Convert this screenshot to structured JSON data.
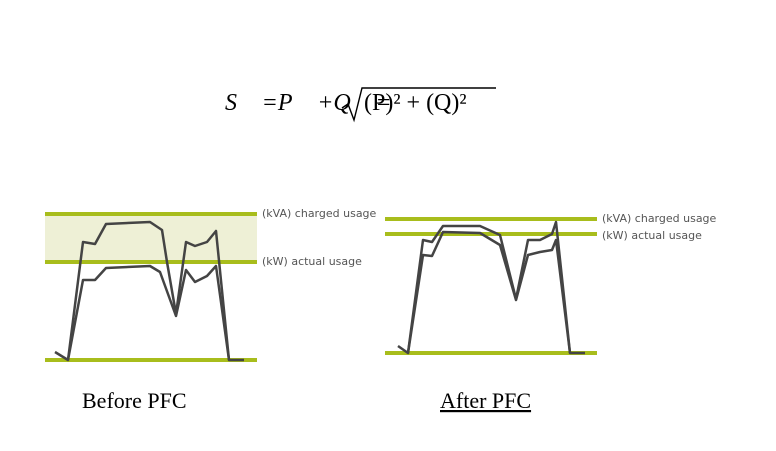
{
  "formula": {
    "lhs": "S⃗ =P⃗ +Q⃗ =",
    "radicand": "(P)² + (Q)²"
  },
  "figures": [
    {
      "caption": "Before PFC",
      "upper_label": "(kVA) charged usage",
      "lower_label": "(kW) actual usage"
    },
    {
      "caption": "After PFC",
      "upper_label": "(kVA) charged usage",
      "lower_label": "(kW) actual usage"
    }
  ]
}
